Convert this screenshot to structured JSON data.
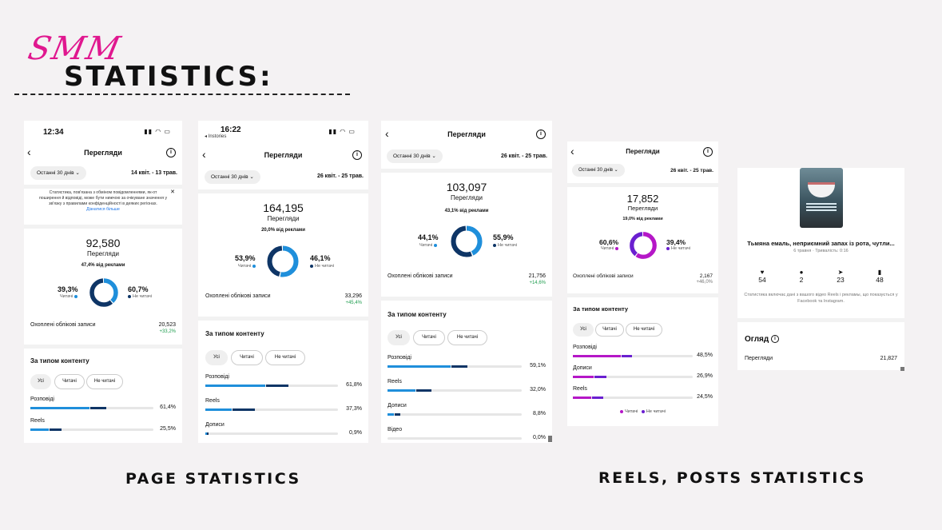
{
  "header": {
    "script_text": "SMM",
    "title": "STATISTICS:"
  },
  "captions": {
    "left": "PAGE STATISTICS",
    "right": "REELS, POSTS STATISTICS"
  },
  "colors": {
    "follower_blue": "#1f8fdb",
    "nonfollower_navy": "#0e3566",
    "follower_purple": "#b517c7",
    "nonfollower_violet": "#6a1fd0",
    "script_pink": "#e0188f"
  },
  "phone1": {
    "time": "12:34",
    "title": "Перегляди",
    "period": "Останні 30 днів",
    "range": "14 квіт. - 13 трав.",
    "notice": "Статистика, пов'язана з обміном повідомленнями, як-от поширення й відповіді, може бути нижчою за очікуване значення у зв'язку з правилами конфіденційності в деяких регіонах.",
    "notice_link": "Дізнатися більше",
    "views": "92,580",
    "views_label": "Перегляди",
    "ads": "47,4% від реклами",
    "followers_pct": "39,3%",
    "followers_label": "Читачі",
    "nonfollowers_pct": "60,7%",
    "nonfollowers_label": "Не читачі",
    "followers_fraction": 0.393,
    "reached_label": "Охоплені облікові записи",
    "reached_value": "20,523",
    "reached_change": "+33,2%",
    "section": "За типом контенту",
    "chips": [
      "Усі",
      "Читачі",
      "Не читачі"
    ],
    "bars": [
      {
        "label": "Розповіді",
        "pct": "61,4%",
        "follower": 0.48,
        "nonfollower": 0.13
      },
      {
        "label": "Reels",
        "pct": "25,5%",
        "follower": 0.15,
        "nonfollower": 0.1
      }
    ]
  },
  "phone2": {
    "time": "16:22",
    "back_app": "◂ Instories",
    "title": "Перегляди",
    "period": "Останні 30 днів",
    "range": "26 квіт. - 25 трав.",
    "views": "164,195",
    "views_label": "Перегляди",
    "ads": "20,0% від реклами",
    "followers_pct": "53,9%",
    "followers_label": "Читачі",
    "nonfollowers_pct": "46,1%",
    "nonfollowers_label": "Не читачі",
    "followers_fraction": 0.539,
    "reached_label": "Охоплені облікові записи",
    "reached_value": "33,296",
    "reached_change": "+45,4%",
    "section": "За типом контенту",
    "chips": [
      "Усі",
      "Читачі",
      "Не читачі"
    ],
    "bars": [
      {
        "label": "Розповіді",
        "pct": "61,8%",
        "follower": 0.45,
        "nonfollower": 0.17
      },
      {
        "label": "Reels",
        "pct": "37,3%",
        "follower": 0.2,
        "nonfollower": 0.17
      },
      {
        "label": "Дописи",
        "pct": "0,9%",
        "follower": 0.006,
        "nonfollower": 0.003
      }
    ]
  },
  "phone3": {
    "title": "Перегляди",
    "period": "Останні 30 днів",
    "range": "26 квіт. - 25 трав.",
    "views": "103,097",
    "views_label": "Перегляди",
    "ads": "43,1% від реклами",
    "followers_pct": "44,1%",
    "followers_label": "Читачі",
    "nonfollowers_pct": "55,9%",
    "nonfollowers_label": "Не читачі",
    "followers_fraction": 0.441,
    "reached_label": "Охоплені облікові записи",
    "reached_value": "21,756",
    "reached_change": "+14,6%",
    "section": "За типом контенту",
    "chips": [
      "Усі",
      "Читачі",
      "Не читачі"
    ],
    "bars": [
      {
        "label": "Розповіді",
        "pct": "59,1%",
        "follower": 0.47,
        "nonfollower": 0.12
      },
      {
        "label": "Reels",
        "pct": "32,0%",
        "follower": 0.21,
        "nonfollower": 0.11
      },
      {
        "label": "Дописи",
        "pct": "8,8%",
        "follower": 0.05,
        "nonfollower": 0.038
      },
      {
        "label": "Відео",
        "pct": "0,0%",
        "follower": 0,
        "nonfollower": 0
      }
    ]
  },
  "phone4": {
    "title": "Перегляди",
    "period": "Останні 30 днів",
    "range": "26 квіт. - 25 трав.",
    "views": "17,852",
    "views_label": "Перегляди",
    "ads": "19,0% від реклами",
    "followers_pct": "60,6%",
    "followers_label": "Читачі",
    "nonfollowers_pct": "39,4%",
    "nonfollowers_label": "Не читачі",
    "followers_fraction": 0.606,
    "reached_label": "Охоплені облікові записи",
    "reached_value": "2,167",
    "reached_change": "+46,0%",
    "section": "За типом контенту",
    "chips": [
      "Усі",
      "Читачі",
      "Не читачі"
    ],
    "bars": [
      {
        "label": "Розповіді",
        "pct": "48,5%",
        "follower": 0.4,
        "nonfollower": 0.085
      },
      {
        "label": "Дописи",
        "pct": "26,9%",
        "follower": 0.17,
        "nonfollower": 0.1
      },
      {
        "label": "Reels",
        "pct": "24,5%",
        "follower": 0.15,
        "nonfollower": 0.095
      }
    ],
    "legend": [
      "Читачі",
      "Не читачі"
    ]
  },
  "phone5": {
    "post_title": "Тьмяна емаль, неприємний запах із рота, чутли...",
    "post_meta": "6 травня · Тривалість: 0:16",
    "stats": [
      {
        "icon": "heart-icon",
        "value": "54"
      },
      {
        "icon": "comment-icon",
        "value": "2"
      },
      {
        "icon": "share-icon",
        "value": "23"
      },
      {
        "icon": "bookmark-icon",
        "value": "48"
      }
    ],
    "note": "Статистика включає дані з вашого відео Reels і рекламы, що показується у Facebook та Instagram.",
    "overview_title": "Огляд",
    "views_label": "Перегляди",
    "views_value": "21,827"
  }
}
